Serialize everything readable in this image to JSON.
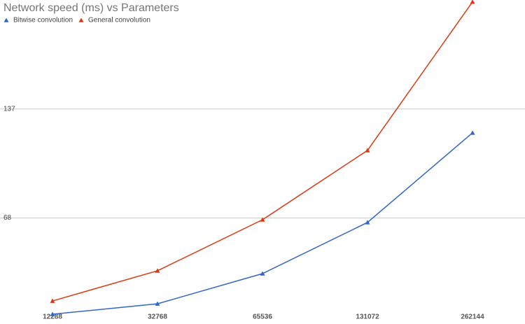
{
  "chart_data": {
    "type": "line",
    "title": "Network speed (ms) vs Parameters",
    "categories": [
      "12288",
      "32768",
      "65536",
      "131072",
      "262144"
    ],
    "series": [
      {
        "name": "Bitwise convolution",
        "color": "#3366cc",
        "values": [
          7.1,
          13.7,
          32.8,
          65.2,
          121.9
        ]
      },
      {
        "name": "General convolution",
        "color": "#dc3912",
        "values": [
          15.5,
          34.6,
          66.9,
          110.8,
          204.8
        ]
      }
    ],
    "ylim": [
      4,
      206
    ],
    "yticks": [
      68,
      137
    ],
    "grid": true,
    "legend": "top-left"
  }
}
